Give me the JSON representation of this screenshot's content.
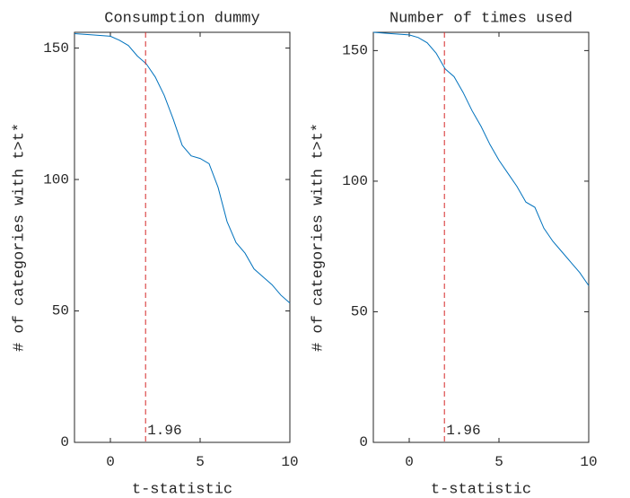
{
  "chart_data": [
    {
      "type": "line",
      "title": "Consumption dummy",
      "xlabel": "t-statistic",
      "ylabel": "# of categories with t>t*",
      "x": [
        -2,
        -1,
        0,
        0.5,
        1,
        1.5,
        2,
        2.5,
        3,
        3.5,
        4,
        4.5,
        5,
        5.5,
        6,
        6.5,
        7,
        7.5,
        8,
        8.5,
        9,
        9.5,
        10
      ],
      "values": [
        155.5,
        155,
        154.5,
        153,
        151,
        147,
        144,
        139,
        132,
        123,
        113,
        109,
        108,
        106,
        97,
        84,
        76,
        72,
        66,
        63,
        60,
        56,
        53
      ],
      "color": "#0072bd",
      "xlim": [
        -2,
        10
      ],
      "ylim": [
        0,
        156
      ],
      "xticks": [
        0,
        5,
        10
      ],
      "yticks": [
        0,
        50,
        100,
        150
      ],
      "vline": 1.96,
      "vline_color": "#d62728"
    },
    {
      "type": "line",
      "title": "Number of times used",
      "xlabel": "t-statistic",
      "ylabel": "# of categories with t>t*",
      "x": [
        -2,
        -1,
        0,
        0.5,
        1,
        1.5,
        2,
        2.5,
        3,
        3.5,
        4,
        4.5,
        5,
        5.5,
        6,
        6.5,
        7,
        7.5,
        8,
        8.5,
        9,
        9.5,
        10
      ],
      "values": [
        157,
        156.5,
        156,
        155,
        153,
        149,
        143,
        140,
        134,
        127,
        121,
        114,
        108,
        103,
        98,
        92,
        90,
        82,
        77,
        73,
        69,
        65,
        60
      ],
      "color": "#0072bd",
      "xlim": [
        -2,
        10
      ],
      "ylim": [
        0,
        157
      ],
      "xticks": [
        0,
        5,
        10
      ],
      "yticks": [
        0,
        50,
        100,
        150
      ],
      "vline": 1.96,
      "vline_color": "#d62728"
    }
  ]
}
